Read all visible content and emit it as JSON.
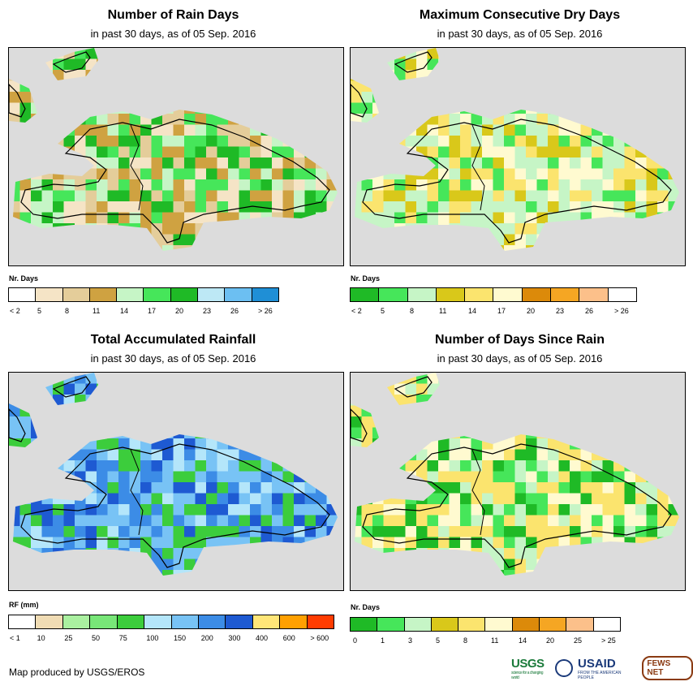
{
  "colors": {
    "map_bg": "#dcdcdc",
    "coast": "#000000"
  },
  "panels": [
    {
      "title": "Number of Rain Days",
      "subtitle": "in past 30 days, as of 05 Sep. 2016",
      "legend_title": "Nr. Days",
      "legend_colors": [
        "#ffffff",
        "#f5e4c6",
        "#e4cd9a",
        "#cfa241",
        "#c6f5c6",
        "#46e65a",
        "#1fba26",
        "#bde8f5",
        "#6cbff2",
        "#1f8fd6"
      ],
      "legend_ticks": [
        "< 2",
        "5",
        "8",
        "11",
        "14",
        "17",
        "20",
        "23",
        "26",
        "> 26"
      ],
      "main_palette": [
        "#e4cd9a",
        "#cfa241",
        "#46e65a",
        "#1fba26",
        "#c6f5c6",
        "#f5e4c6"
      ]
    },
    {
      "title": "Maximum Consecutive Dry Days",
      "subtitle": "in past 30 days, as of 05 Sep. 2016",
      "legend_title": "Nr. Days",
      "legend_colors": [
        "#1fba26",
        "#46e65a",
        "#c6f5c6",
        "#d9c81a",
        "#fbe46e",
        "#fffad0",
        "#dc8a0a",
        "#f5a623",
        "#fcc08a",
        "#ffffff"
      ],
      "legend_ticks": [
        "< 2",
        "5",
        "8",
        "11",
        "14",
        "17",
        "20",
        "23",
        "26",
        "> 26"
      ],
      "main_palette": [
        "#c6f5c6",
        "#d9c81a",
        "#46e65a",
        "#fbe46e",
        "#fffad0",
        "#c6f5c6"
      ]
    },
    {
      "title": "Total Accumulated Rainfall",
      "subtitle": "in past 30 days, as of 05 Sep. 2016",
      "legend_title": "RF (mm)",
      "legend_colors": [
        "#ffffff",
        "#f0dcb4",
        "#aaf0a0",
        "#78e678",
        "#3ccd3c",
        "#b4e6fa",
        "#78c3f5",
        "#3c8ce6",
        "#1e5ad2",
        "#ffe678",
        "#ffa000",
        "#ff3c00"
      ],
      "legend_ticks": [
        "< 1",
        "10",
        "25",
        "50",
        "75",
        "100",
        "150",
        "200",
        "300",
        "400",
        "600",
        "> 600"
      ],
      "main_palette": [
        "#78c3f5",
        "#3c8ce6",
        "#b4e6fa",
        "#3ccd3c",
        "#1e5ad2",
        "#78c3f5"
      ]
    },
    {
      "title": "Number of Days Since Rain",
      "subtitle": "in past 30 days, as of 05 Sep. 2016",
      "legend_title": "Nr. Days",
      "legend_colors": [
        "#1fba26",
        "#46e65a",
        "#c6f5c6",
        "#d9c81a",
        "#fbe46e",
        "#fffad0",
        "#dc8a0a",
        "#f5a623",
        "#fcc08a",
        "#ffffff"
      ],
      "legend_ticks": [
        "0",
        "1",
        "3",
        "5",
        "8",
        "11",
        "14",
        "20",
        "25",
        "> 25"
      ],
      "main_palette": [
        "#fbe46e",
        "#c6f5c6",
        "#1fba26",
        "#46e65a",
        "#fffad0",
        "#fbe46e"
      ]
    }
  ],
  "footer": {
    "credit": "Map produced by USGS/EROS"
  },
  "logos": {
    "usgs": "USGS",
    "usgs_tagline": "science for a changing world",
    "usaid": "USAID",
    "usaid_tagline": "FROM THE AMERICAN PEOPLE",
    "fews": "FEWS NET"
  }
}
